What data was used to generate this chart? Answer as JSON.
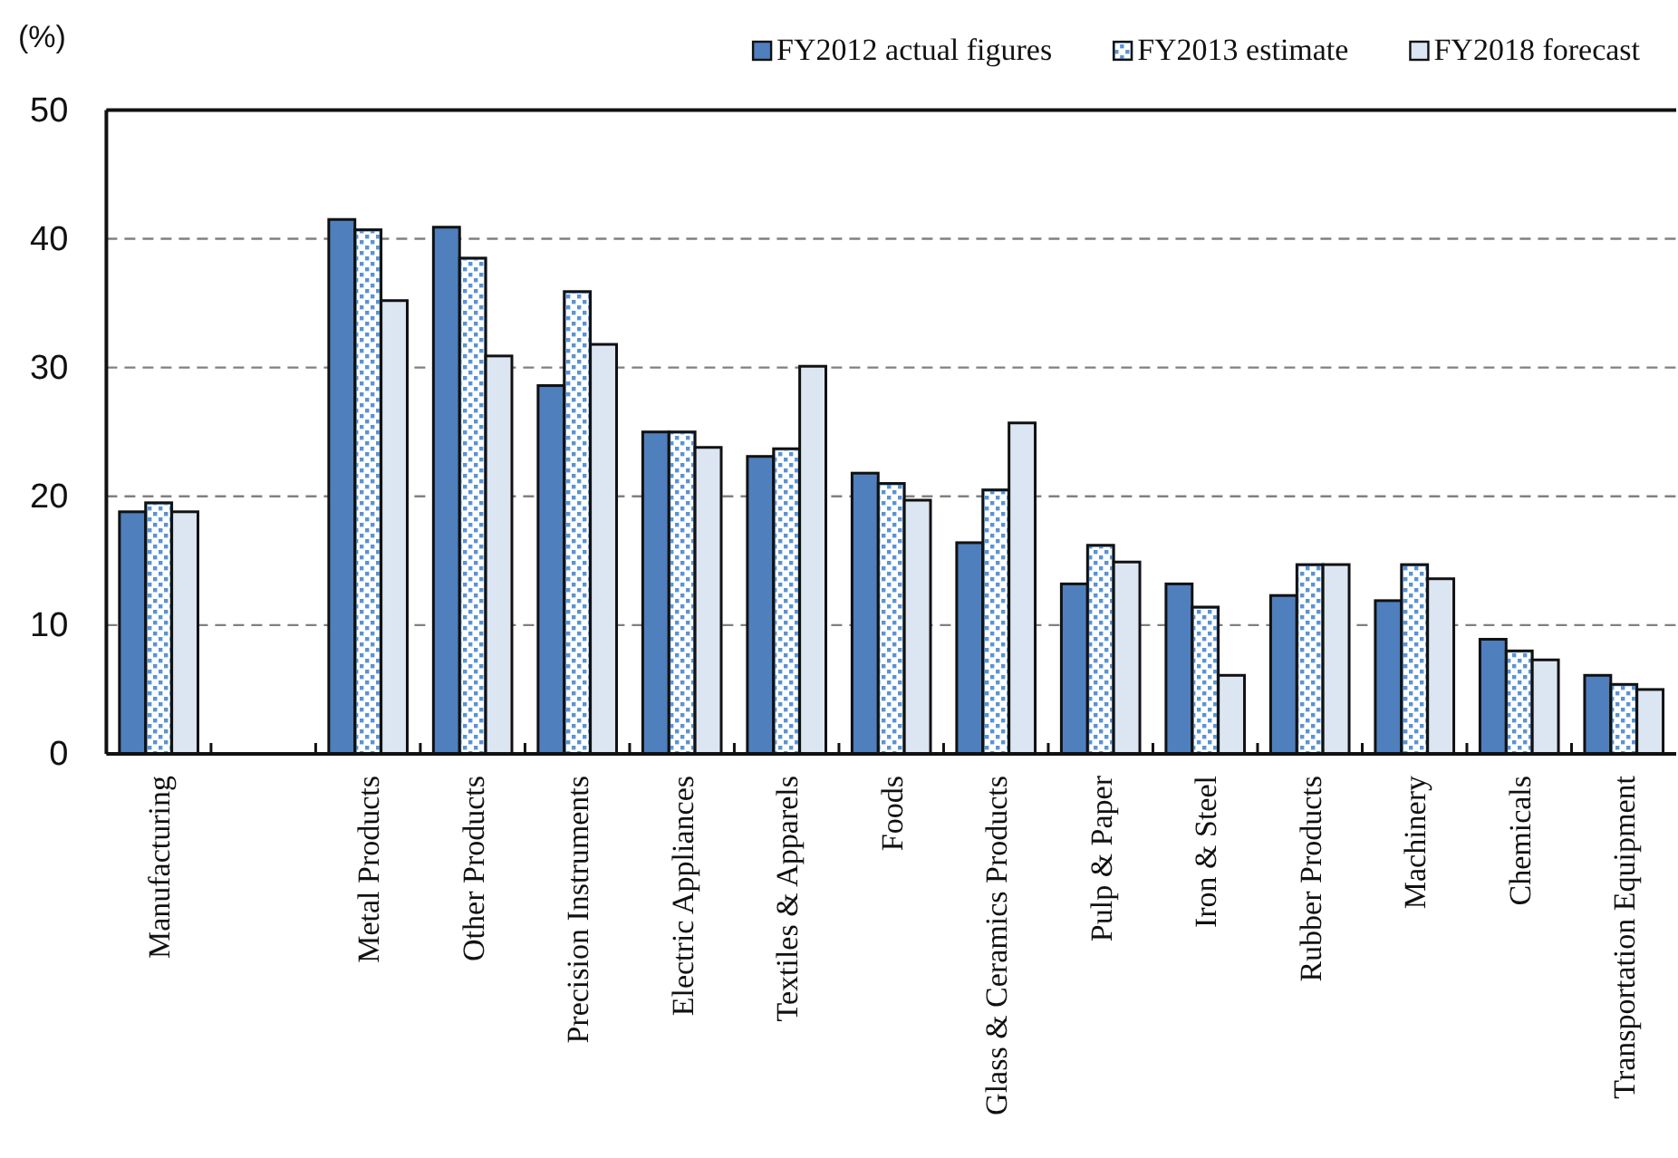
{
  "chart_data": {
    "type": "bar",
    "ylabel": "(%)",
    "categories": [
      "Manufacturing",
      null,
      "Metal Products",
      "Other Products",
      "Precision Instruments",
      "Electric Appliances",
      "Textiles & Apparels",
      "Foods",
      "Glass & Ceramics Products",
      "Pulp & Paper",
      "Iron & Steel",
      "Rubber Products",
      "Machinery",
      "Chemicals",
      "Transportation Equipment"
    ],
    "series": [
      {
        "name": "FY2012 actual figures",
        "color": "#4f7fbc",
        "values": [
          18.8,
          null,
          41.5,
          40.9,
          28.6,
          25.0,
          23.1,
          21.8,
          16.4,
          13.2,
          13.2,
          12.3,
          11.9,
          8.9,
          6.1
        ]
      },
      {
        "name": "FY2013 estimate",
        "color": "#5b93d3",
        "values": [
          19.5,
          null,
          40.7,
          38.5,
          35.9,
          25.0,
          23.7,
          21.0,
          20.5,
          16.2,
          11.4,
          14.7,
          14.7,
          8.0,
          5.4
        ]
      },
      {
        "name": "FY2018 forecast",
        "color": "#dce6f2",
        "values": [
          18.8,
          null,
          35.2,
          30.9,
          31.8,
          23.8,
          30.1,
          19.7,
          25.7,
          14.9,
          6.1,
          14.7,
          13.6,
          7.3,
          5.0
        ]
      }
    ],
    "ylim": [
      0,
      50
    ],
    "yticks": [
      0,
      10,
      20,
      30,
      40,
      50
    ],
    "grid": "y",
    "legend": "top right"
  }
}
